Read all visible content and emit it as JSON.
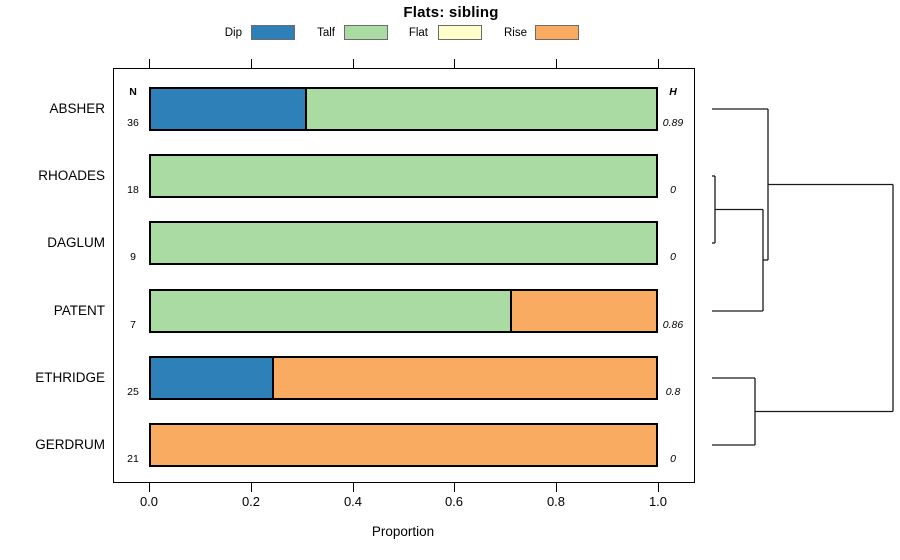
{
  "title": "Flats: sibling",
  "legend": {
    "items": [
      {
        "label": "Dip",
        "color": "#2e81b8"
      },
      {
        "label": "Talf",
        "color": "#aadba2"
      },
      {
        "label": "Flat",
        "color": "#ffffcc"
      },
      {
        "label": "Rise",
        "color": "#f9ab61"
      }
    ]
  },
  "columns": {
    "n_header": "N",
    "h_header": "H"
  },
  "axis": {
    "ticks": [
      "0.0",
      "0.2",
      "0.4",
      "0.6",
      "0.8",
      "1.0"
    ],
    "xlabel": "Proportion"
  },
  "rows": [
    {
      "label": "ABSHER",
      "n": "36",
      "h": "0.89",
      "segments": [
        {
          "key": "Dip",
          "frac": 0.306
        },
        {
          "key": "Talf",
          "frac": 0.694
        }
      ]
    },
    {
      "label": "RHOADES",
      "n": "18",
      "h": "0",
      "segments": [
        {
          "key": "Talf",
          "frac": 1.0
        }
      ]
    },
    {
      "label": "DAGLUM",
      "n": "9",
      "h": "0",
      "segments": [
        {
          "key": "Talf",
          "frac": 1.0
        }
      ]
    },
    {
      "label": "PATENT",
      "n": "7",
      "h": "0.86",
      "segments": [
        {
          "key": "Talf",
          "frac": 0.714
        },
        {
          "key": "Rise",
          "frac": 0.286
        }
      ]
    },
    {
      "label": "ETHRIDGE",
      "n": "25",
      "h": "0.8",
      "segments": [
        {
          "key": "Dip",
          "frac": 0.24
        },
        {
          "key": "Rise",
          "frac": 0.76
        }
      ]
    },
    {
      "label": "GERDRUM",
      "n": "21",
      "h": "0",
      "segments": [
        {
          "key": "Rise",
          "frac": 1.0
        }
      ]
    }
  ],
  "dendrogram_lines": [
    [
      22,
      49,
      78,
      49
    ],
    [
      22,
      116,
      25,
      116
    ],
    [
      22,
      183,
      25,
      183
    ],
    [
      25,
      116,
      25,
      183
    ],
    [
      25,
      149.5,
      73,
      149.5
    ],
    [
      22,
      251,
      73,
      251
    ],
    [
      73,
      149.5,
      73,
      251
    ],
    [
      73,
      200,
      78,
      200
    ],
    [
      78,
      49,
      78,
      200
    ],
    [
      78,
      124.5,
      203,
      124.5
    ],
    [
      22,
      318,
      65,
      318
    ],
    [
      22,
      385,
      65,
      385
    ],
    [
      65,
      318,
      65,
      385
    ],
    [
      65,
      351.5,
      203,
      351.5
    ],
    [
      203,
      124.5,
      203,
      351.5
    ]
  ],
  "chart_data": {
    "type": "bar",
    "orientation": "horizontal",
    "stacked": true,
    "title": "Flats: sibling",
    "xlabel": "Proportion",
    "xlim": [
      0,
      1
    ],
    "x_ticks": [
      0.0,
      0.2,
      0.4,
      0.6,
      0.8,
      1.0
    ],
    "categories": [
      "ABSHER",
      "RHOADES",
      "DAGLUM",
      "PATENT",
      "ETHRIDGE",
      "GERDRUM"
    ],
    "n_values": [
      36,
      18,
      9,
      7,
      25,
      21
    ],
    "h_values": [
      0.89,
      0,
      0,
      0.86,
      0.8,
      0
    ],
    "series": [
      {
        "name": "Dip",
        "values": [
          0.306,
          0,
          0,
          0,
          0.24,
          0
        ]
      },
      {
        "name": "Talf",
        "values": [
          0.694,
          1,
          1,
          0.714,
          0,
          0
        ]
      },
      {
        "name": "Flat",
        "values": [
          0,
          0,
          0,
          0,
          0,
          0
        ]
      },
      {
        "name": "Rise",
        "values": [
          0,
          0,
          0,
          0.286,
          0.76,
          1
        ]
      }
    ],
    "legend_position": "top",
    "grid": false,
    "dendrogram": {
      "position": "right",
      "structure": "((ABSHER,((RHOADES,DAGLUM),PATENT)),(ETHRIDGE,GERDRUM))"
    }
  }
}
